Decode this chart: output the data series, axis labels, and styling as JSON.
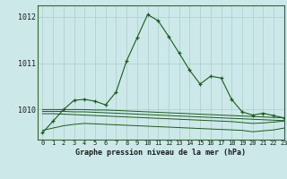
{
  "title": "Graphe pression niveau de la mer (hPa)",
  "bg_color": "#cce8e8",
  "grid_color": "#aacece",
  "line_color": "#1a5c1a",
  "xlim": [
    -0.5,
    23
  ],
  "ylim": [
    1009.35,
    1012.25
  ],
  "yticks": [
    1010,
    1011,
    1012
  ],
  "xticks": [
    0,
    1,
    2,
    3,
    4,
    5,
    6,
    7,
    8,
    9,
    10,
    11,
    12,
    13,
    14,
    15,
    16,
    17,
    18,
    19,
    20,
    21,
    22,
    23
  ],
  "series1_x": [
    0,
    1,
    2,
    3,
    4,
    5,
    6,
    7,
    8,
    9,
    10,
    11,
    12,
    13,
    14,
    15,
    16,
    17,
    18,
    19,
    20,
    21,
    22,
    23
  ],
  "series1_y": [
    1009.5,
    1009.75,
    1010.0,
    1010.2,
    1010.22,
    1010.18,
    1010.1,
    1010.38,
    1011.05,
    1011.55,
    1012.05,
    1011.92,
    1011.58,
    1011.22,
    1010.85,
    1010.55,
    1010.72,
    1010.68,
    1010.22,
    1009.95,
    1009.88,
    1009.92,
    1009.87,
    1009.82
  ],
  "series2_x": [
    0,
    1,
    2,
    3,
    4,
    5,
    6,
    7,
    8,
    9,
    10,
    11,
    12,
    13,
    14,
    15,
    16,
    17,
    18,
    19,
    20,
    21,
    22,
    23
  ],
  "series2_y": [
    1010.0,
    1010.0,
    1010.0,
    1010.0,
    1010.0,
    1009.99,
    1009.99,
    1009.98,
    1009.97,
    1009.96,
    1009.95,
    1009.94,
    1009.93,
    1009.92,
    1009.91,
    1009.9,
    1009.89,
    1009.88,
    1009.87,
    1009.86,
    1009.85,
    1009.84,
    1009.83,
    1009.82
  ],
  "series3_x": [
    0,
    1,
    2,
    3,
    4,
    5,
    6,
    7,
    8,
    9,
    10,
    11,
    12,
    13,
    14,
    15,
    16,
    17,
    18,
    19,
    20,
    21,
    22,
    23
  ],
  "series3_y": [
    1009.96,
    1009.96,
    1009.96,
    1009.95,
    1009.95,
    1009.94,
    1009.93,
    1009.92,
    1009.91,
    1009.9,
    1009.89,
    1009.88,
    1009.87,
    1009.86,
    1009.85,
    1009.84,
    1009.83,
    1009.82,
    1009.81,
    1009.8,
    1009.79,
    1009.78,
    1009.77,
    1009.76
  ],
  "series4_x": [
    0,
    1,
    2,
    3,
    4,
    5,
    6,
    7,
    8,
    9,
    10,
    11,
    12,
    13,
    14,
    15,
    16,
    17,
    18,
    19,
    20,
    21,
    22,
    23
  ],
  "series4_y": [
    1009.91,
    1009.91,
    1009.9,
    1009.89,
    1009.88,
    1009.87,
    1009.86,
    1009.85,
    1009.84,
    1009.83,
    1009.82,
    1009.81,
    1009.8,
    1009.79,
    1009.78,
    1009.77,
    1009.76,
    1009.75,
    1009.74,
    1009.72,
    1009.7,
    1009.71,
    1009.73,
    1009.75
  ],
  "series5_x": [
    0,
    1,
    2,
    3,
    4,
    5,
    6,
    7,
    8,
    9,
    10,
    11,
    12,
    13,
    14,
    15,
    16,
    17,
    18,
    19,
    20,
    21,
    22,
    23
  ],
  "series5_y": [
    1009.55,
    1009.6,
    1009.65,
    1009.68,
    1009.7,
    1009.69,
    1009.68,
    1009.67,
    1009.66,
    1009.65,
    1009.64,
    1009.63,
    1009.62,
    1009.61,
    1009.6,
    1009.59,
    1009.58,
    1009.57,
    1009.56,
    1009.55,
    1009.52,
    1009.54,
    1009.56,
    1009.6
  ]
}
